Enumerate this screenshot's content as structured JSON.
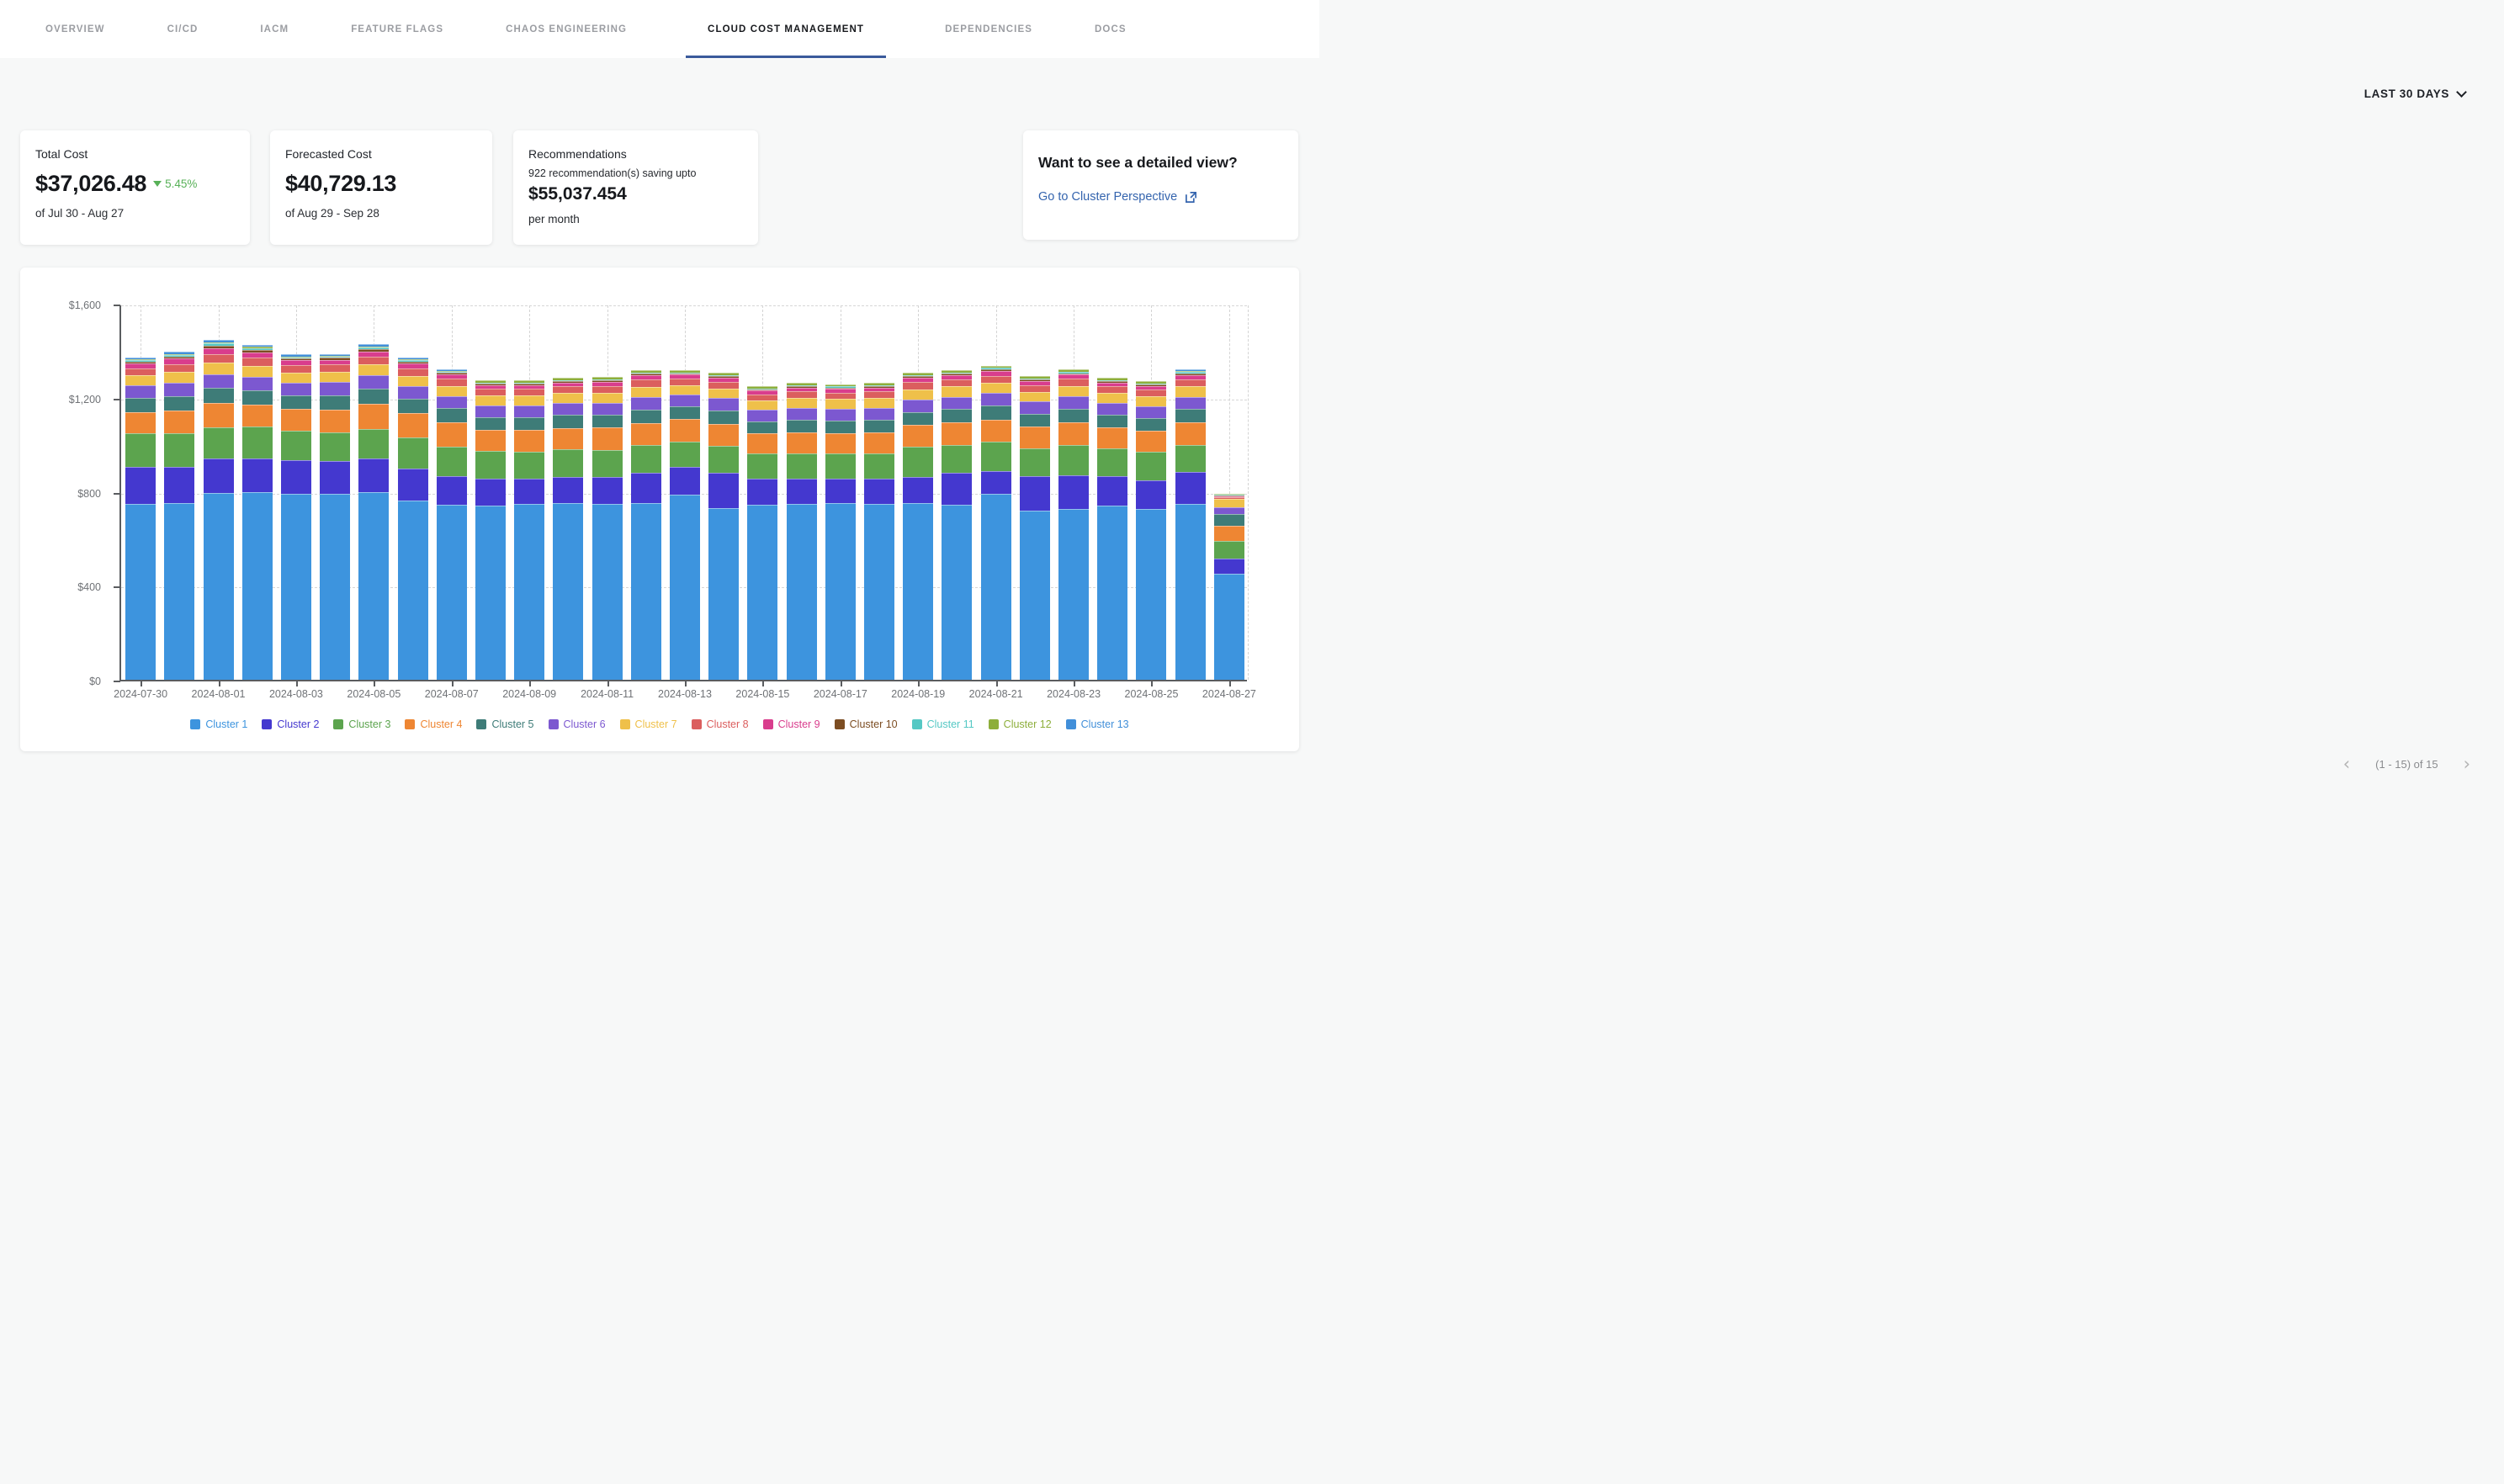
{
  "nav": {
    "tabs": [
      {
        "label": "OVERVIEW",
        "active": false
      },
      {
        "label": "CI/CD",
        "active": false
      },
      {
        "label": "IACM",
        "active": false
      },
      {
        "label": "FEATURE FLAGS",
        "active": false
      },
      {
        "label": "CHAOS ENGINEERING",
        "active": false
      },
      {
        "label": "CLOUD COST MANAGEMENT",
        "active": true
      },
      {
        "label": "DEPENDENCIES",
        "active": false
      },
      {
        "label": "DOCS",
        "active": false
      }
    ],
    "active_underline_color": "#3a5a9b"
  },
  "time_filter": {
    "label": "LAST 30 DAYS",
    "icon": "chevron-down-icon"
  },
  "cards": {
    "total_cost": {
      "title": "Total Cost",
      "value": "$37,026.48",
      "delta": "5.45%",
      "delta_direction": "down",
      "delta_color": "#58b158",
      "period": "of Jul 30 - Aug 27"
    },
    "forecasted_cost": {
      "title": "Forecasted Cost",
      "value": "$40,729.13",
      "period": "of Aug 29 - Sep 28"
    },
    "recommendations": {
      "title": "Recommendations",
      "subtitle": "922 recommendation(s) saving upto",
      "value": "$55,037.454",
      "suffix": "per month"
    },
    "detailed_view": {
      "title": "Want to see a detailed view?",
      "link_label": "Go to Cluster Perspective",
      "link_color": "#3464ae",
      "icon": "external-link-icon"
    }
  },
  "chart_data": {
    "type": "bar",
    "stacked": true,
    "title": "",
    "xlabel": "",
    "ylabel": "",
    "ylim": [
      0,
      1600
    ],
    "y_ticks": [
      "$0",
      "$400",
      "$800",
      "$1,200",
      "$1,600"
    ],
    "x_tick_step": 2,
    "grid": "dashed",
    "legend_position": "bottom",
    "x": [
      "2024-07-30",
      "2024-07-31",
      "2024-08-01",
      "2024-08-02",
      "2024-08-03",
      "2024-08-04",
      "2024-08-05",
      "2024-08-06",
      "2024-08-07",
      "2024-08-08",
      "2024-08-09",
      "2024-08-10",
      "2024-08-11",
      "2024-08-12",
      "2024-08-13",
      "2024-08-14",
      "2024-08-15",
      "2024-08-16",
      "2024-08-17",
      "2024-08-18",
      "2024-08-19",
      "2024-08-20",
      "2024-08-21",
      "2024-08-22",
      "2024-08-23",
      "2024-08-24",
      "2024-08-25",
      "2024-08-26",
      "2024-08-27"
    ],
    "series": [
      {
        "name": "Cluster 1",
        "color": "#3D94DE",
        "values": [
          748,
          752,
          795,
          798,
          790,
          792,
          798,
          762,
          745,
          742,
          748,
          752,
          748,
          753,
          788,
          730,
          744,
          748,
          752,
          748,
          752,
          744,
          792,
          720,
          728,
          742,
          728,
          748,
          452
        ]
      },
      {
        "name": "Cluster 2",
        "color": "#4438CF",
        "values": [
          158,
          152,
          148,
          142,
          145,
          140,
          142,
          138,
          122,
          112,
          106,
          110,
          115,
          126,
          116,
          150,
          110,
          106,
          102,
          106,
          112,
          136,
          96,
          146,
          142,
          126,
          122,
          136,
          62
        ]
      },
      {
        "name": "Cluster 3",
        "color": "#5CA44E",
        "values": [
          142,
          146,
          132,
          136,
          126,
          122,
          126,
          132,
          126,
          120,
          116,
          120,
          116,
          120,
          110,
          116,
          110,
          110,
          110,
          110,
          126,
          120,
          126,
          120,
          130,
          116,
          120,
          116,
          76
        ]
      },
      {
        "name": "Cluster 4",
        "color": "#EE8633",
        "values": [
          92,
          96,
          102,
          96,
          90,
          96,
          110,
          104,
          104,
          90,
          94,
          90,
          94,
          94,
          94,
          94,
          84,
          90,
          84,
          90,
          94,
          94,
          94,
          90,
          94,
          90,
          90,
          94,
          64
        ]
      },
      {
        "name": "Cluster 5",
        "color": "#3E7C78",
        "values": [
          58,
          62,
          64,
          60,
          58,
          60,
          62,
          60,
          58,
          54,
          54,
          56,
          54,
          58,
          54,
          56,
          52,
          54,
          54,
          54,
          56,
          58,
          58,
          56,
          58,
          54,
          54,
          58,
          50
        ]
      },
      {
        "name": "Cluster 6",
        "color": "#7C58D0",
        "values": [
          54,
          56,
          60,
          58,
          54,
          56,
          58,
          54,
          52,
          50,
          50,
          50,
          52,
          52,
          50,
          52,
          48,
          50,
          50,
          50,
          52,
          52,
          54,
          52,
          54,
          50,
          50,
          52,
          30
        ]
      },
      {
        "name": "Cluster 7",
        "color": "#EFC04A",
        "values": [
          44,
          46,
          48,
          46,
          44,
          44,
          46,
          44,
          44,
          42,
          42,
          42,
          42,
          44,
          42,
          42,
          40,
          42,
          42,
          42,
          44,
          44,
          44,
          42,
          44,
          42,
          42,
          44,
          34
        ]
      },
      {
        "name": "Cluster 8",
        "color": "#DB5E5E",
        "values": [
          30,
          34,
          36,
          34,
          32,
          32,
          34,
          32,
          30,
          28,
          28,
          28,
          28,
          30,
          28,
          28,
          26,
          28,
          28,
          28,
          30,
          30,
          30,
          28,
          30,
          28,
          28,
          30,
          8
        ]
      },
      {
        "name": "Cluster 9",
        "color": "#D93D8D",
        "values": [
          20,
          22,
          26,
          24,
          20,
          20,
          22,
          20,
          18,
          16,
          16,
          16,
          18,
          18,
          16,
          18,
          16,
          16,
          16,
          16,
          18,
          18,
          20,
          18,
          18,
          16,
          16,
          18,
          6
        ]
      },
      {
        "name": "Cluster 10",
        "color": "#7C4D22",
        "values": [
          8,
          9,
          12,
          10,
          8,
          8,
          10,
          9,
          7,
          6,
          6,
          6,
          7,
          7,
          6,
          7,
          5,
          6,
          6,
          6,
          7,
          7,
          8,
          6,
          7,
          6,
          6,
          7,
          3
        ]
      },
      {
        "name": "Cluster 11",
        "color": "#55C8C4",
        "values": [
          5,
          6,
          8,
          7,
          5,
          5,
          6,
          5,
          4,
          4,
          4,
          4,
          4,
          5,
          4,
          4,
          4,
          4,
          4,
          4,
          5,
          5,
          5,
          4,
          5,
          4,
          4,
          6,
          4
        ]
      },
      {
        "name": "Cluster 12",
        "color": "#8DAE3B",
        "values": [
          4,
          5,
          6,
          5,
          4,
          4,
          5,
          4,
          4,
          10,
          10,
          10,
          10,
          10,
          10,
          10,
          10,
          10,
          10,
          10,
          10,
          10,
          10,
          10,
          10,
          10,
          10,
          5,
          2
        ]
      },
      {
        "name": "Cluster 13",
        "color": "#418FD9",
        "values": [
          8,
          9,
          10,
          9,
          8,
          8,
          9,
          8,
          7,
          0,
          0,
          0,
          0,
          0,
          0,
          0,
          0,
          0,
          0,
          0,
          0,
          0,
          0,
          0,
          0,
          0,
          0,
          6,
          2
        ]
      }
    ]
  },
  "pagination": {
    "label": "(1 - 15) of 15",
    "prev_icon": "chevron-left-icon",
    "next_icon": "chevron-right-icon",
    "prev_glyph": "‹",
    "next_glyph": "›"
  }
}
